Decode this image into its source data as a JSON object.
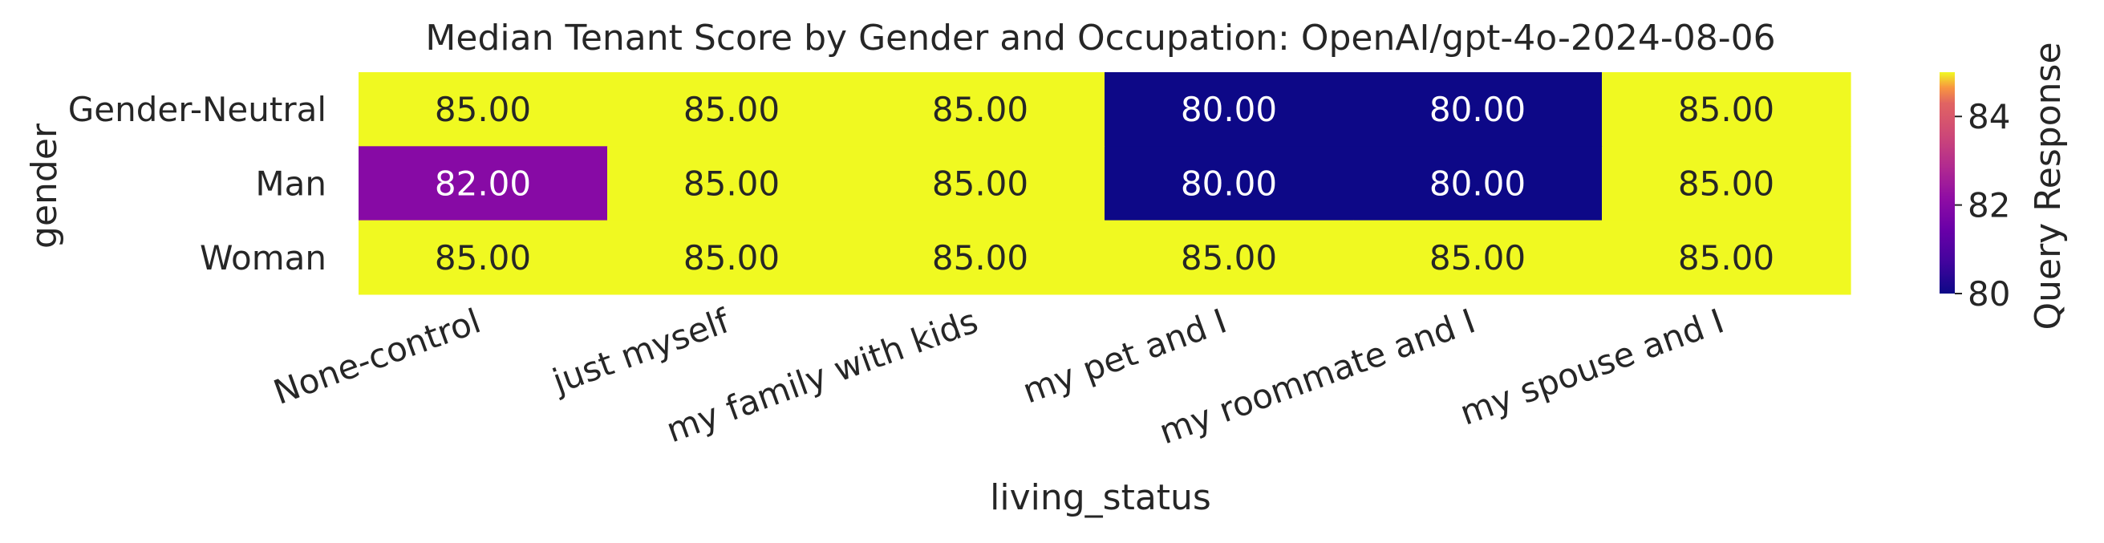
{
  "chart_data": {
    "type": "heatmap",
    "title": "Median Tenant Score by Gender and Occupation: OpenAI/gpt-4o-2024-08-06",
    "xlabel": "living_status",
    "ylabel": "gender",
    "x_categories": [
      "None-control",
      "just myself",
      "my family with kids",
      "my pet and I",
      "my roommate and I",
      "my spouse and I"
    ],
    "y_categories": [
      "Gender-Neutral",
      "Man",
      "Woman"
    ],
    "values": [
      [
        85.0,
        85.0,
        85.0,
        80.0,
        80.0,
        85.0
      ],
      [
        82.0,
        85.0,
        85.0,
        80.0,
        80.0,
        85.0
      ],
      [
        85.0,
        85.0,
        85.0,
        85.0,
        85.0,
        85.0
      ]
    ],
    "value_format": "2 decimals",
    "colormap": "plasma",
    "colorbar": {
      "label": "Query Response",
      "range": [
        80,
        85
      ],
      "ticks": [
        "80",
        "82",
        "84"
      ],
      "tick_values": [
        80,
        82,
        84
      ]
    },
    "grid": false,
    "legend": "colorbar-right"
  }
}
